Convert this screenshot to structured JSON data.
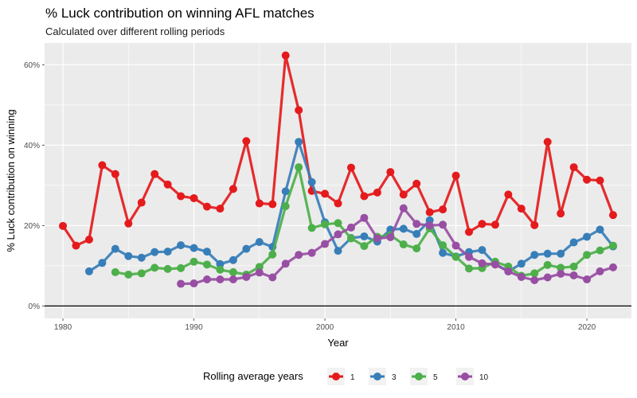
{
  "chart_data": {
    "type": "line",
    "title": "% Luck contribution on winning AFL matches",
    "subtitle": "Calculated over different rolling periods",
    "xlabel": "Year",
    "ylabel": "% Luck contribution on winning",
    "xlim": [
      1978.6,
      2023.4
    ],
    "ylim": [
      -3.1,
      65.4
    ],
    "x_ticks": [
      1980,
      1990,
      2000,
      2010,
      2020
    ],
    "y_ticks": [
      0,
      20,
      40,
      60
    ],
    "y_tick_labels": [
      "0%",
      "20%",
      "40%",
      "60%"
    ],
    "grid": true,
    "zero_line": 0,
    "legend": {
      "title": "Rolling average years",
      "position": "bottom"
    },
    "series": [
      {
        "name": "1",
        "color": "#E41A1C",
        "x": [
          1980,
          1981,
          1982,
          1983,
          1984,
          1985,
          1986,
          1987,
          1988,
          1989,
          1990,
          1991,
          1992,
          1993,
          1994,
          1995,
          1996,
          1997,
          1998,
          1999,
          2000,
          2001,
          2002,
          2003,
          2004,
          2005,
          2006,
          2007,
          2008,
          2009,
          2010,
          2011,
          2012,
          2013,
          2014,
          2015,
          2016,
          2017,
          2018,
          2019,
          2020,
          2021,
          2022
        ],
        "y": [
          19.9,
          15.0,
          16.5,
          35.0,
          32.8,
          20.5,
          25.7,
          32.8,
          30.2,
          27.3,
          26.8,
          24.7,
          24.2,
          29.1,
          41.0,
          25.5,
          25.3,
          62.3,
          48.7,
          28.6,
          27.9,
          25.5,
          34.4,
          27.3,
          28.2,
          33.3,
          27.7,
          30.4,
          23.3,
          24.0,
          32.4,
          18.4,
          20.4,
          20.2,
          27.7,
          24.2,
          20.1,
          40.8,
          23.0,
          34.5,
          31.4,
          31.2,
          22.6
        ]
      },
      {
        "name": "3",
        "color": "#377EB8",
        "x": [
          1982,
          1983,
          1984,
          1985,
          1986,
          1987,
          1988,
          1989,
          1990,
          1991,
          1992,
          1993,
          1994,
          1995,
          1996,
          1997,
          1998,
          1999,
          2000,
          2001,
          2002,
          2003,
          2004,
          2005,
          2006,
          2007,
          2008,
          2009,
          2010,
          2011,
          2012,
          2013,
          2014,
          2015,
          2016,
          2017,
          2018,
          2019,
          2020,
          2021,
          2022
        ],
        "y": [
          8.6,
          10.7,
          14.2,
          12.4,
          12.0,
          13.4,
          13.5,
          15.1,
          14.4,
          13.5,
          10.4,
          11.4,
          14.2,
          15.9,
          14.7,
          28.5,
          40.8,
          30.8,
          20.8,
          13.7,
          16.9,
          17.3,
          16.0,
          19.0,
          19.2,
          17.9,
          21.3,
          13.2,
          12.3,
          13.4,
          13.9,
          10.4,
          8.6,
          10.5,
          12.7,
          13.0,
          13.0,
          15.8,
          17.2,
          19.0,
          14.8
        ]
      },
      {
        "name": "5",
        "color": "#4DAF4A",
        "x": [
          1984,
          1985,
          1986,
          1987,
          1988,
          1989,
          1990,
          1991,
          1992,
          1993,
          1994,
          1995,
          1996,
          1997,
          1998,
          1999,
          2000,
          2001,
          2002,
          2003,
          2004,
          2005,
          2006,
          2007,
          2008,
          2009,
          2010,
          2011,
          2012,
          2013,
          2014,
          2015,
          2016,
          2017,
          2018,
          2019,
          2020,
          2021,
          2022
        ],
        "y": [
          8.4,
          7.8,
          8.1,
          9.5,
          9.2,
          9.4,
          11.0,
          10.3,
          9.0,
          8.4,
          7.8,
          9.7,
          12.8,
          24.8,
          34.5,
          19.4,
          20.3,
          20.6,
          16.8,
          14.9,
          17.2,
          17.6,
          15.3,
          14.3,
          19.3,
          15.1,
          12.2,
          9.3,
          9.4,
          11.0,
          9.8,
          7.5,
          8.1,
          10.2,
          9.5,
          9.8,
          12.7,
          13.8,
          15.0
        ]
      },
      {
        "name": "10",
        "color": "#984EA3",
        "x": [
          1989,
          1990,
          1991,
          1992,
          1993,
          1994,
          1995,
          1996,
          1997,
          1998,
          1999,
          2000,
          2001,
          2002,
          2003,
          2004,
          2005,
          2006,
          2007,
          2008,
          2009,
          2010,
          2011,
          2012,
          2013,
          2014,
          2015,
          2016,
          2017,
          2018,
          2019,
          2020,
          2021,
          2022
        ],
        "y": [
          5.5,
          5.6,
          6.6,
          6.6,
          6.6,
          7.2,
          8.3,
          7.1,
          10.5,
          12.7,
          13.2,
          15.4,
          17.8,
          19.5,
          21.9,
          16.8,
          17.1,
          24.3,
          20.4,
          20.0,
          20.2,
          15.0,
          12.2,
          10.6,
          10.3,
          8.6,
          7.2,
          6.4,
          7.1,
          8.0,
          7.6,
          6.6,
          8.6,
          9.6
        ]
      }
    ]
  }
}
